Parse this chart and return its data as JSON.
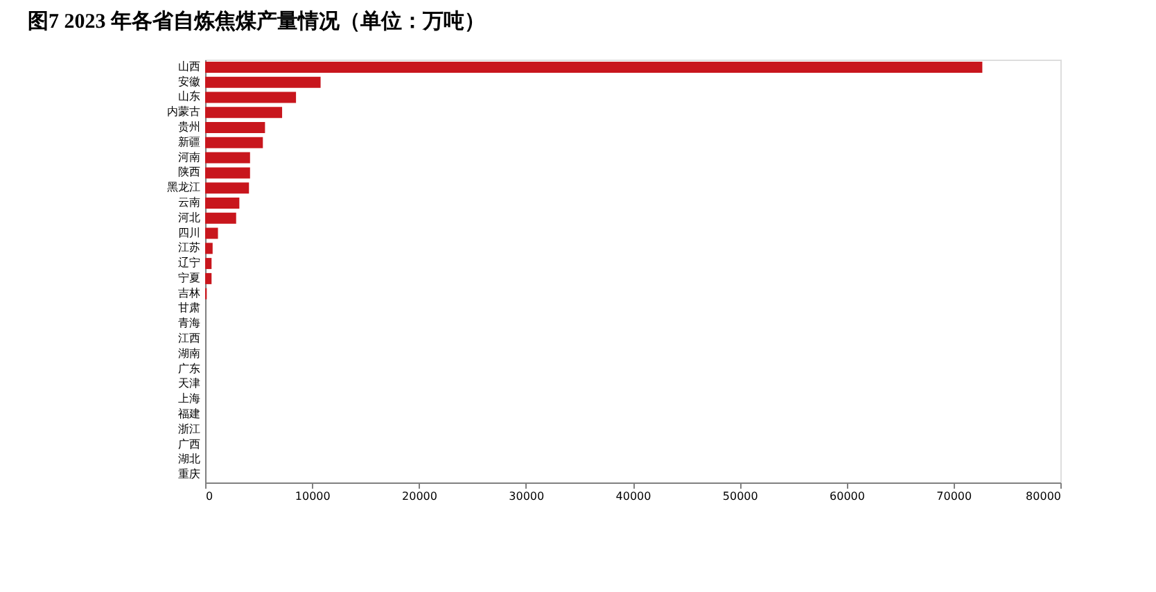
{
  "chart_data": {
    "type": "bar",
    "orientation": "horizontal",
    "title": "图7  2023 年各省自炼焦煤产量情况（单位：万吨）",
    "categories": [
      "山西",
      "安徽",
      "山东",
      "内蒙古",
      "贵州",
      "新疆",
      "河南",
      "陕西",
      "黑龙江",
      "云南",
      "河北",
      "四川",
      "江苏",
      "辽宁",
      "宁夏",
      "吉林",
      "甘肃",
      "青海",
      "江西",
      "湖南",
      "广东",
      "天津",
      "上海",
      "福建",
      "浙江",
      "广西",
      "湖北",
      "重庆"
    ],
    "values": [
      72700,
      10800,
      8500,
      7200,
      5600,
      5400,
      4200,
      4200,
      4100,
      3200,
      2900,
      1200,
      700,
      600,
      600,
      150,
      0,
      0,
      0,
      0,
      0,
      0,
      0,
      0,
      0,
      0,
      0,
      0
    ],
    "color": "#c8161d",
    "xlim": [
      0,
      80000
    ],
    "xticks": [
      0,
      10000,
      20000,
      30000,
      40000,
      50000,
      60000,
      70000,
      80000
    ],
    "grid": false
  }
}
